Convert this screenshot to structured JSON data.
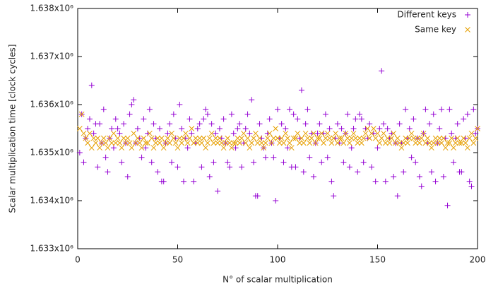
{
  "chart_data": {
    "type": "scatter",
    "xlabel": "N° of scalar multiplication",
    "ylabel": "Scalar multiplication time [clock cycles]",
    "xlim": [
      0,
      200
    ],
    "xticks": [
      0,
      50,
      100,
      150,
      200
    ],
    "ylim": [
      1633000,
      1638000
    ],
    "yticks": [
      {
        "value": 1633000,
        "label": "1.633x10⁶"
      },
      {
        "value": 1634000,
        "label": "1.634x10⁶"
      },
      {
        "value": 1635000,
        "label": "1.635x10⁶"
      },
      {
        "value": 1636000,
        "label": "1.636x10⁶"
      },
      {
        "value": 1637000,
        "label": "1.637x10⁶"
      },
      {
        "value": 1638000,
        "label": "1.638x10⁶"
      }
    ],
    "legend": "top-right",
    "x": [
      1,
      2,
      3,
      4,
      5,
      6,
      7,
      8,
      9,
      10,
      11,
      12,
      13,
      14,
      15,
      16,
      17,
      18,
      19,
      20,
      21,
      22,
      23,
      24,
      25,
      26,
      27,
      28,
      29,
      30,
      31,
      32,
      33,
      34,
      35,
      36,
      37,
      38,
      39,
      40,
      41,
      42,
      43,
      44,
      45,
      46,
      47,
      48,
      49,
      50,
      51,
      52,
      53,
      54,
      55,
      56,
      57,
      58,
      59,
      60,
      61,
      62,
      63,
      64,
      65,
      66,
      67,
      68,
      69,
      70,
      71,
      72,
      73,
      74,
      75,
      76,
      77,
      78,
      79,
      80,
      81,
      82,
      83,
      84,
      85,
      86,
      87,
      88,
      89,
      90,
      91,
      92,
      93,
      94,
      95,
      96,
      97,
      98,
      99,
      100,
      101,
      102,
      103,
      104,
      105,
      106,
      107,
      108,
      109,
      110,
      111,
      112,
      113,
      114,
      115,
      116,
      117,
      118,
      119,
      120,
      121,
      122,
      123,
      124,
      125,
      126,
      127,
      128,
      129,
      130,
      131,
      132,
      133,
      134,
      135,
      136,
      137,
      138,
      139,
      140,
      141,
      142,
      143,
      144,
      145,
      146,
      147,
      148,
      149,
      150,
      151,
      152,
      153,
      154,
      155,
      156,
      157,
      158,
      159,
      160,
      161,
      162,
      163,
      164,
      165,
      166,
      167,
      168,
      169,
      170,
      171,
      172,
      173,
      174,
      175,
      176,
      177,
      178,
      179,
      180,
      181,
      182,
      183,
      184,
      185,
      186,
      187,
      188,
      189,
      190,
      191,
      192,
      193,
      194,
      195,
      196,
      197,
      198,
      199,
      200
    ],
    "series": [
      {
        "name": "Different keys",
        "color": "#9400d3",
        "marker": "plus",
        "values": [
          1635000,
          1635800,
          1634800,
          1635300,
          1635500,
          1635700,
          1636400,
          1635400,
          1635600,
          1634700,
          1635600,
          1635200,
          1635900,
          1634900,
          1634600,
          1635300,
          1635500,
          1635100,
          1635700,
          1635500,
          1635400,
          1634800,
          1635600,
          1635200,
          1634500,
          1635800,
          1636000,
          1636100,
          1635200,
          1635500,
          1635300,
          1634900,
          1635700,
          1635100,
          1635400,
          1635900,
          1634800,
          1635600,
          1635300,
          1634600,
          1635500,
          1634400,
          1634400,
          1635200,
          1635400,
          1635600,
          1634800,
          1635800,
          1635300,
          1634700,
          1636000,
          1635500,
          1634400,
          1635300,
          1635100,
          1635700,
          1635400,
          1634400,
          1635200,
          1635500,
          1635600,
          1634700,
          1635700,
          1635900,
          1635800,
          1634500,
          1635600,
          1634800,
          1635400,
          1634200,
          1635500,
          1635300,
          1635700,
          1635200,
          1634800,
          1634700,
          1635800,
          1635400,
          1635100,
          1635500,
          1635600,
          1634700,
          1635200,
          1635500,
          1635800,
          1635400,
          1636100,
          1634800,
          1634100,
          1634100,
          1635600,
          1635300,
          1635100,
          1634900,
          1635400,
          1635700,
          1635200,
          1634900,
          1634000,
          1635900,
          1635300,
          1635600,
          1634800,
          1635500,
          1635100,
          1635900,
          1634700,
          1635800,
          1634700,
          1635700,
          1635300,
          1636300,
          1634600,
          1635600,
          1635900,
          1634900,
          1635400,
          1634500,
          1635200,
          1635400,
          1635600,
          1634800,
          1635400,
          1635800,
          1634900,
          1635500,
          1634400,
          1634100,
          1635300,
          1635600,
          1635200,
          1635500,
          1634800,
          1635400,
          1635800,
          1634700,
          1635100,
          1635500,
          1635700,
          1634600,
          1635800,
          1635700,
          1634800,
          1635500,
          1635300,
          1635600,
          1634700,
          1635400,
          1634400,
          1635100,
          1635500,
          1636700,
          1635600,
          1634400,
          1635500,
          1635300,
          1635400,
          1634500,
          1635200,
          1634100,
          1635600,
          1635200,
          1634600,
          1635900,
          1635300,
          1635500,
          1634900,
          1635700,
          1634800,
          1635300,
          1634500,
          1634300,
          1635400,
          1635900,
          1635200,
          1635600,
          1634600,
          1635800,
          1634400,
          1635200,
          1635500,
          1635900,
          1634500,
          1635300,
          1633900,
          1635900,
          1635400,
          1634800,
          1635300,
          1635600,
          1634600,
          1634600,
          1635700,
          1635300,
          1635800,
          1634400,
          1634300,
          1635900,
          1635400,
          1635500
        ]
      },
      {
        "name": "Same key",
        "color": "#e69f00",
        "marker": "cross",
        "values": [
          1635500,
          1635800,
          1635400,
          1635300,
          1635200,
          1635400,
          1635100,
          1635300,
          1635200,
          1635300,
          1635100,
          1635200,
          1635300,
          1635200,
          1635100,
          1635300,
          1635200,
          1635400,
          1635200,
          1635300,
          1635200,
          1635100,
          1635300,
          1635200,
          1635300,
          1635200,
          1635100,
          1635400,
          1635200,
          1635300,
          1635200,
          1635100,
          1635300,
          1635200,
          1635200,
          1635400,
          1635300,
          1635100,
          1635200,
          1635300,
          1635200,
          1635300,
          1635100,
          1635200,
          1635300,
          1635200,
          1635400,
          1635300,
          1635200,
          1635100,
          1635300,
          1635200,
          1635300,
          1635400,
          1635200,
          1635300,
          1635500,
          1635200,
          1635300,
          1635200,
          1635300,
          1635200,
          1635300,
          1635100,
          1635200,
          1635300,
          1635400,
          1635200,
          1635300,
          1635200,
          1635300,
          1635200,
          1635100,
          1635200,
          1635300,
          1635200,
          1635100,
          1635200,
          1635200,
          1635300,
          1635200,
          1635300,
          1635400,
          1635200,
          1635300,
          1635100,
          1635200,
          1635300,
          1635400,
          1635200,
          1635300,
          1635200,
          1635100,
          1635200,
          1635300,
          1635400,
          1635200,
          1635300,
          1635500,
          1635300,
          1635200,
          1635300,
          1635200,
          1635400,
          1635300,
          1635200,
          1635100,
          1635300,
          1635300,
          1635400,
          1635200,
          1635300,
          1635200,
          1635400,
          1635300,
          1635200,
          1635300,
          1635400,
          1635200,
          1635300,
          1635300,
          1635400,
          1635200,
          1635300,
          1635400,
          1635300,
          1635200,
          1635300,
          1635400,
          1635200,
          1635300,
          1635300,
          1635200,
          1635400,
          1635300,
          1635200,
          1635300,
          1635400,
          1635300,
          1635200,
          1635300,
          1635200,
          1635300,
          1635400,
          1635500,
          1635300,
          1635400,
          1635500,
          1635300,
          1635400,
          1635200,
          1635300,
          1635400,
          1635200,
          1635300,
          1635200,
          1635300,
          1635400,
          1635200,
          1635300,
          1635200,
          1635100,
          1635200,
          1635300,
          1635200,
          1635300,
          1635400,
          1635300,
          1635200,
          1635300,
          1635200,
          1635300,
          1635400,
          1635200,
          1635300,
          1635200,
          1635100,
          1635200,
          1635300,
          1635200,
          1635300,
          1635200,
          1635300,
          1635100,
          1635200,
          1635200,
          1635300,
          1635100,
          1635200,
          1635300,
          1635200,
          1635200,
          1635300,
          1635200,
          1635100,
          1635300,
          1635400,
          1635200,
          1635300,
          1635500
        ]
      }
    ]
  }
}
